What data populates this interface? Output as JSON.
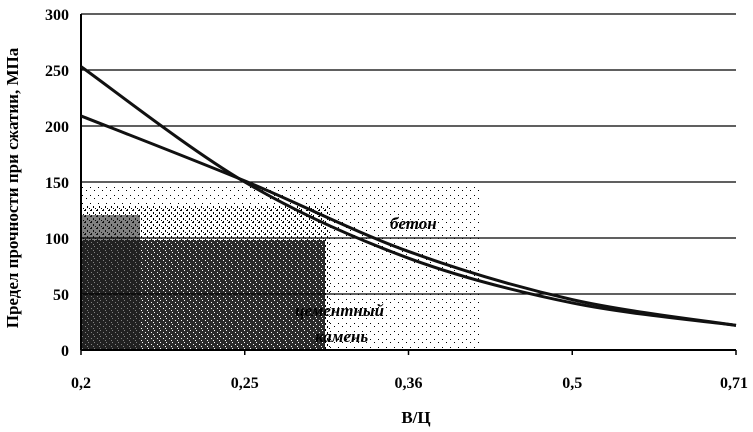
{
  "chart_data": {
    "type": "line",
    "categories": [
      "0,2",
      "0,25",
      "0,36",
      "0,5",
      "0,71"
    ],
    "ylabel": "Предел прочности при сжатии, МПа",
    "xlabel": "В/Ц",
    "ylim": [
      0,
      300
    ],
    "yticks": [
      "0",
      "50",
      "100",
      "150",
      "200",
      "250",
      "300"
    ],
    "grid": true,
    "series": [
      {
        "name": "цементный камень",
        "values": [
          253,
          150,
          82,
          42,
          22
        ]
      },
      {
        "name": "бетон",
        "values": [
          209,
          151,
          88,
          45,
          22
        ]
      }
    ],
    "annotations": [
      {
        "text": "бетон"
      },
      {
        "text": "цементный"
      },
      {
        "text": "камень"
      }
    ]
  }
}
